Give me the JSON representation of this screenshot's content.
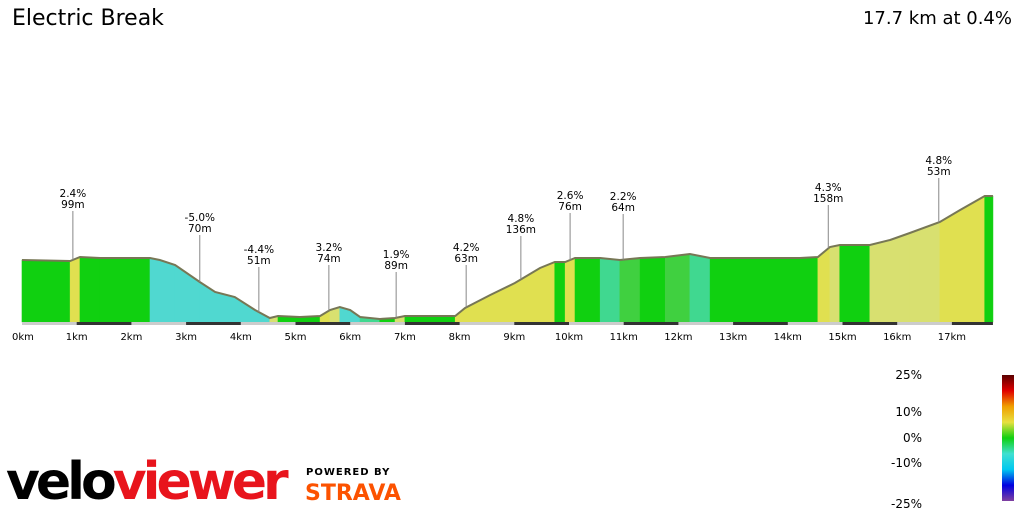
{
  "title": "Electric Break",
  "summary": "17.7 km at 0.4%",
  "chart_data": {
    "type": "area",
    "xlabel": "",
    "ylabel": "",
    "x_unit": "km",
    "xlim": [
      0,
      17.75
    ],
    "x_ticks": [
      "0km",
      "1km",
      "2km",
      "3km",
      "4km",
      "5km",
      "6km",
      "7km",
      "8km",
      "9km",
      "10km",
      "11km",
      "12km",
      "13km",
      "14km",
      "15km",
      "16km",
      "17km"
    ],
    "profile_km": [
      0,
      0.88,
      1.06,
      1.43,
      2.34,
      2.52,
      2.8,
      3.25,
      3.53,
      3.89,
      4.26,
      4.53,
      4.68,
      5.08,
      5.45,
      5.63,
      5.81,
      6.0,
      6.18,
      6.54,
      6.82,
      7.0,
      7.73,
      7.92,
      8.1,
      8.56,
      9.01,
      9.47,
      9.74,
      9.93,
      10.11,
      10.57,
      10.93,
      11.3,
      11.76,
      12.21,
      12.58,
      12.94,
      13.49,
      14.22,
      14.55,
      14.77,
      14.95,
      15.5,
      15.87,
      16.23,
      16.78,
      17.15,
      17.6,
      17.75
    ],
    "profile_relative_height": [
      62,
      61,
      65,
      64,
      64,
      62,
      57,
      40,
      30,
      25,
      12,
      4,
      6,
      5,
      6,
      12,
      15,
      12,
      5,
      3,
      4,
      6,
      6,
      6,
      14,
      27,
      39,
      54,
      60,
      60,
      64,
      64,
      62,
      64,
      65,
      68,
      64,
      64,
      64,
      64,
      65,
      75,
      77,
      77,
      82,
      89,
      100,
      112,
      126,
      126
    ],
    "annotations": [
      {
        "km": 0.93,
        "grade": "2.4%",
        "length": "99m"
      },
      {
        "km": 3.25,
        "grade": "-5.0%",
        "length": "70m"
      },
      {
        "km": 4.33,
        "grade": "-4.4%",
        "length": "51m"
      },
      {
        "km": 5.61,
        "grade": "3.2%",
        "length": "74m"
      },
      {
        "km": 6.84,
        "grade": "1.9%",
        "length": "89m"
      },
      {
        "km": 8.12,
        "grade": "4.2%",
        "length": "63m"
      },
      {
        "km": 9.12,
        "grade": "4.8%",
        "length": "136m"
      },
      {
        "km": 10.02,
        "grade": "2.6%",
        "length": "76m"
      },
      {
        "km": 10.99,
        "grade": "2.2%",
        "length": "64m"
      },
      {
        "km": 14.74,
        "grade": "4.3%",
        "length": "158m"
      },
      {
        "km": 16.76,
        "grade": "4.8%",
        "length": "53m"
      }
    ],
    "grade_legend": {
      "labels": [
        "25%",
        "10%",
        "0%",
        "-10%",
        "-25%"
      ],
      "colors": [
        "#5a0000",
        "#e00000",
        "#f0a000",
        "#e8e040",
        "#10d010",
        "#40e0d0",
        "#00c8f0",
        "#0000e0",
        "#8040a0"
      ]
    }
  },
  "branding": {
    "logo": "veloviewer",
    "powered_by": "POWERED BY",
    "partner": "STRAVA",
    "logo_color_dark": "#000000",
    "logo_color_accent": "#e8141c"
  }
}
